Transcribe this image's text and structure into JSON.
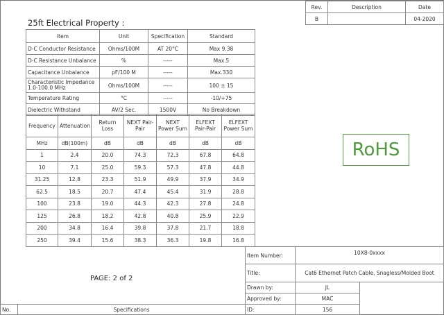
{
  "revision_block": {
    "headers": [
      "Rev.",
      "Description",
      "Date"
    ],
    "row": [
      "B",
      "",
      "04-2020"
    ]
  },
  "section_title": "25ft Electrical Property :",
  "property_table": {
    "headers": [
      "Item",
      "Unit",
      "Specification",
      "Standard"
    ],
    "rows": [
      [
        "D-C Conductor Resistance",
        "Ohms/100M",
        "AT 20°C",
        "Max 9.38"
      ],
      [
        "D-C Resistance Unbalance",
        "%",
        "-----",
        "Max.5"
      ],
      [
        "Capacitance Unbalance",
        "pF/100 M",
        "-----",
        "Max.330"
      ],
      [
        "Characteristic Impedance\n1.0-100.0 MHz",
        "Ohms/100M",
        "-----",
        "100 ± 15"
      ],
      [
        "Temperature Rating",
        "°C",
        "-----",
        "-10/+75"
      ],
      [
        "Dielectric Withstand",
        "AV/2 Sec.",
        "1500V",
        "No Breakdown"
      ]
    ]
  },
  "performance_table": {
    "headers": [
      "Frequency",
      "Attenuation",
      "Return Loss",
      "NEXT Pair-Pair",
      "NEXT Power Sum",
      "ELFEXT Pair-Pair",
      "ELFEXT Power Sum"
    ],
    "units": [
      "MHz",
      "dB(100m)",
      "dB",
      "dB",
      "dB",
      "dB",
      "dB"
    ],
    "rows": [
      [
        "1",
        "2.4",
        "20.0",
        "74.3",
        "72.3",
        "67.8",
        "64.8"
      ],
      [
        "10",
        "7.1",
        "25.0",
        "59.3",
        "57.3",
        "47.8",
        "44.8"
      ],
      [
        "31.25",
        "12.8",
        "23.3",
        "51.9",
        "49.9",
        "37.9",
        "34.9"
      ],
      [
        "62.5",
        "18.5",
        "20.7",
        "47.4",
        "45.4",
        "31.9",
        "28.8"
      ],
      [
        "100",
        "23.8",
        "19.0",
        "44.3",
        "42.3",
        "27.8",
        "24.8"
      ],
      [
        "125",
        "26.8",
        "18.2",
        "42.8",
        "40.8",
        "25.9",
        "22.9"
      ],
      [
        "200",
        "34.8",
        "16.4",
        "39.8",
        "37.8",
        "21.7",
        "18.8"
      ],
      [
        "250",
        "39.4",
        "15.6",
        "38.3",
        "36.3",
        "19.8",
        "16.8"
      ]
    ]
  },
  "rohs_logo": "RoHS",
  "rohs_color": "#4f9a3c",
  "page_label": "PAGE: 2 of 2",
  "footer": {
    "no_label": "No.",
    "specifications_label": "Specifications"
  },
  "title_block": {
    "item_number_label": "Item Number:",
    "item_number": "10X8-0xxxx",
    "title_label": "Title:",
    "title": "Cat6 Ethernet Patch Cable, Snagless/Molded Boot",
    "drawn_by_label": "Drawn by:",
    "drawn_by": "JL",
    "approved_by_label": "Approved by:",
    "approved_by": "MAC",
    "id_label": "ID:",
    "id": "156"
  }
}
